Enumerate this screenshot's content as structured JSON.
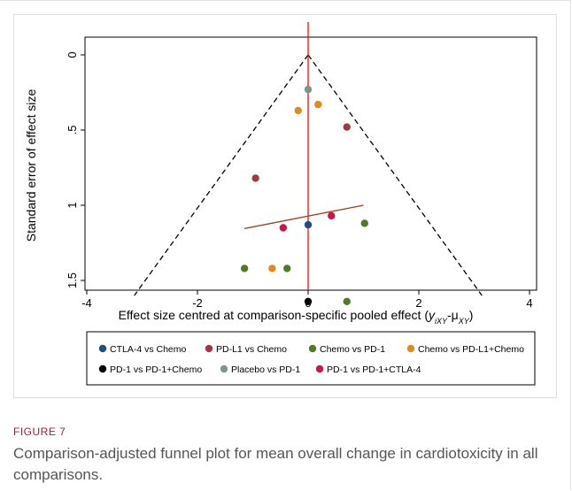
{
  "chart_data": {
    "type": "scatter",
    "title": "",
    "xlabel_prefix": "Effect size centred at comparison-specific pooled effect (",
    "xlabel_math": "y",
    "xlabel_sub1": "iXY",
    "xlabel_mid": "-μ",
    "xlabel_sub2": "XY",
    "xlabel_suffix": ")",
    "ylabel": "Standard error of effect size",
    "xlim": [
      -4,
      4
    ],
    "ylim": [
      0,
      1.65
    ],
    "y_inverted": true,
    "x_ticks": [
      -4,
      -2,
      0,
      2,
      4
    ],
    "x_tick_labels": [
      "-4",
      "-2",
      "0",
      "2",
      "4"
    ],
    "y_ticks": [
      0,
      0.5,
      1,
      1.5
    ],
    "y_tick_labels": [
      "0",
      ".5",
      "1",
      "1.5"
    ],
    "funnel": {
      "apex": [
        0,
        0
      ],
      "base_y": 1.6,
      "base_half_width": 3.14
    },
    "zero_line_x": 0,
    "regression_line": {
      "x": [
        -1.15,
        1.0
      ],
      "y": [
        1.155,
        1.0
      ]
    },
    "series": [
      {
        "name": "CTLA-4 vs Chemo",
        "color": "#1f4e79",
        "points": [
          {
            "x": 0.0,
            "y": 1.13
          }
        ]
      },
      {
        "name": "PD-L1 vs Chemo",
        "color": "#9c3a45",
        "points": [
          {
            "x": 0.7,
            "y": 0.48
          },
          {
            "x": -0.95,
            "y": 0.82
          }
        ]
      },
      {
        "name": "Chemo vs PD-1",
        "color": "#4f7a2a",
        "points": [
          {
            "x": 1.02,
            "y": 1.12
          },
          {
            "x": -1.15,
            "y": 1.42
          },
          {
            "x": -0.38,
            "y": 1.42
          },
          {
            "x": 0.7,
            "y": 1.64
          }
        ]
      },
      {
        "name": "Chemo vs PD-L1+Chemo",
        "color": "#e08a1e",
        "points": [
          {
            "x": -0.18,
            "y": 0.37
          },
          {
            "x": 0.18,
            "y": 0.33
          },
          {
            "x": -0.65,
            "y": 1.42
          }
        ]
      },
      {
        "name": "PD-1 vs PD-1+Chemo",
        "color": "#000000",
        "points": [
          {
            "x": 0.0,
            "y": 1.64
          }
        ]
      },
      {
        "name": "Placebo vs PD-1",
        "color": "#7c978d",
        "points": [
          {
            "x": 0.0,
            "y": 0.23
          }
        ]
      },
      {
        "name": "PD-1 vs PD-1+CTLA-4",
        "color": "#c8184a",
        "points": [
          {
            "x": 0.42,
            "y": 1.07
          },
          {
            "x": -0.45,
            "y": 1.15
          }
        ]
      }
    ],
    "legend_placement": "bottom"
  },
  "caption": {
    "label": "FIGURE 7",
    "text": "Comparison-adjusted funnel plot for mean overall change in cardiotoxicity in all comparisons."
  }
}
